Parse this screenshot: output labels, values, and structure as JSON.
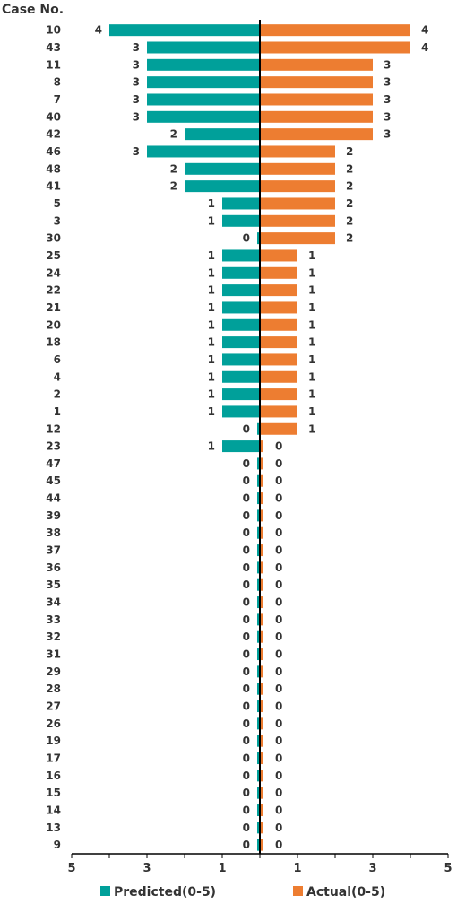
{
  "chart_data": {
    "type": "bar",
    "orientation": "horizontal",
    "layout": "butterfly",
    "y_axis_title": "Case No.",
    "categories": [
      "10",
      "43",
      "11",
      "8",
      "7",
      "40",
      "42",
      "46",
      "48",
      "41",
      "5",
      "3",
      "30",
      "25",
      "24",
      "22",
      "21",
      "20",
      "18",
      "6",
      "4",
      "2",
      "1",
      "12",
      "23",
      "47",
      "45",
      "44",
      "39",
      "38",
      "37",
      "36",
      "35",
      "34",
      "33",
      "32",
      "31",
      "29",
      "28",
      "27",
      "26",
      "19",
      "17",
      "16",
      "15",
      "14",
      "13",
      "9"
    ],
    "series": [
      {
        "name": "Predicted(0-5)",
        "side": "left",
        "color": "#00A09A",
        "values": [
          4,
          3,
          3,
          3,
          3,
          3,
          2,
          3,
          2,
          2,
          1,
          1,
          0,
          1,
          1,
          1,
          1,
          1,
          1,
          1,
          1,
          1,
          1,
          0,
          1,
          0,
          0,
          0,
          0,
          0,
          0,
          0,
          0,
          0,
          0,
          0,
          0,
          0,
          0,
          0,
          0,
          0,
          0,
          0,
          0,
          0,
          0,
          0
        ]
      },
      {
        "name": "Actual(0-5)",
        "side": "right",
        "color": "#ED7D31",
        "values": [
          4,
          4,
          3,
          3,
          3,
          3,
          3,
          2,
          2,
          2,
          2,
          2,
          2,
          1,
          1,
          1,
          1,
          1,
          1,
          1,
          1,
          1,
          1,
          1,
          0,
          0,
          0,
          0,
          0,
          0,
          0,
          0,
          0,
          0,
          0,
          0,
          0,
          0,
          0,
          0,
          0,
          0,
          0,
          0,
          0,
          0,
          0,
          0
        ]
      }
    ],
    "x_tick_labels": [
      "5",
      "3",
      "1",
      "1",
      "3",
      "5"
    ],
    "xlim": [
      -5,
      5
    ],
    "grid": false,
    "legend_position": "bottom"
  }
}
